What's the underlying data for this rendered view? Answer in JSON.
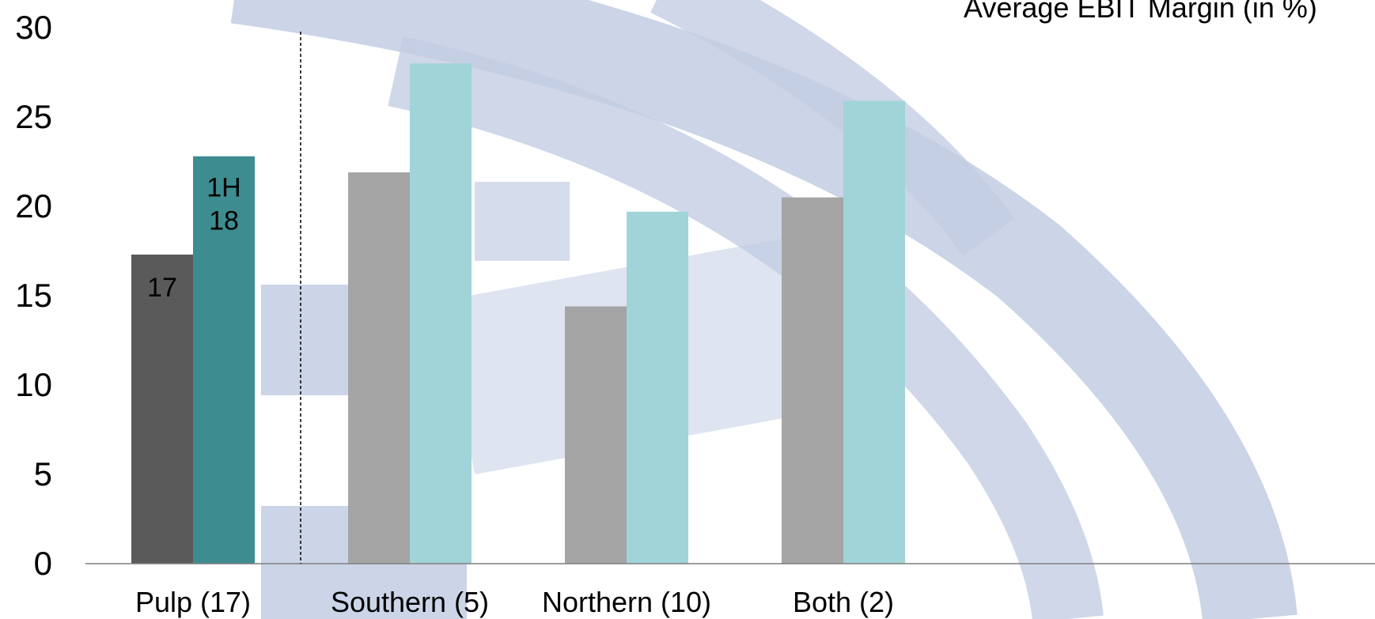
{
  "chart_data": {
    "type": "bar",
    "title": "Average EBIT Margin (in %)",
    "categories": [
      "Pulp (17)",
      "Southern (5)",
      "Northern (10)",
      "Both (2)"
    ],
    "series": [
      {
        "values": [
          17.3,
          21.9,
          14.4,
          20.5
        ],
        "colors": [
          "#5a5a5a",
          "#a5a5a5",
          "#a5a5a5",
          "#a5a5a5"
        ]
      },
      {
        "values": [
          22.8,
          28.0,
          19.7,
          25.9
        ],
        "colors": [
          "#3d8c90",
          "#a0d4d8",
          "#a0d4d8",
          "#a0d4d8"
        ]
      }
    ],
    "data_labels": [
      {
        "series": 0,
        "category": 0,
        "lines": [
          "17"
        ]
      },
      {
        "series": 1,
        "category": 0,
        "lines": [
          "1H",
          "18"
        ]
      }
    ],
    "y_ticks": [
      0,
      5,
      10,
      15,
      20,
      25,
      30
    ],
    "ylim": [
      0,
      30
    ],
    "xlabel": "",
    "ylabel": "",
    "grid": false,
    "legend": "none",
    "separator_after_category": 0,
    "watermark_color": "#c3cde3"
  }
}
